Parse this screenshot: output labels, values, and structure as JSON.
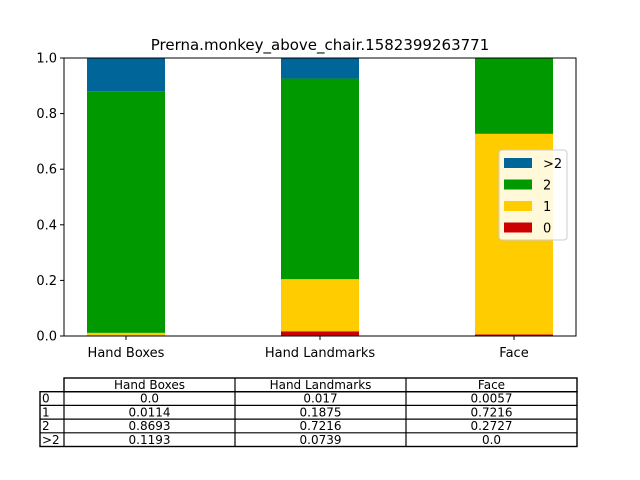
{
  "chart_data": {
    "type": "bar",
    "stacked": true,
    "title": "Prerna.monkey_above_chair.1582399263771",
    "xlabel": "",
    "ylabel": "",
    "categories": [
      "Hand Boxes",
      "Hand Landmarks",
      "Face"
    ],
    "ylim": [
      0,
      1.0
    ],
    "yticks": [
      "0.0",
      "0.2",
      "0.4",
      "0.6",
      "0.8",
      "1.0"
    ],
    "grid": false,
    "legend_position": "center-right",
    "series": [
      {
        "name": "0",
        "color": "#cc0000",
        "values": [
          0.0,
          0.017,
          0.0057
        ]
      },
      {
        "name": "1",
        "color": "#ffcc00",
        "values": [
          0.0114,
          0.1875,
          0.7216
        ]
      },
      {
        "name": "2",
        "color": "#009900",
        "values": [
          0.8693,
          0.7216,
          0.2727
        ]
      },
      {
        "name": ">2",
        "color": "#006699",
        "values": [
          0.1193,
          0.0739,
          0.0
        ]
      }
    ],
    "legend_order": [
      ">2",
      "2",
      "1",
      "0"
    ],
    "table": {
      "col_labels": [
        "Hand Boxes",
        "Hand Landmarks",
        "Face"
      ],
      "rows": [
        {
          "label": "0",
          "cells": [
            "0.0",
            "0.017",
            "0.0057"
          ]
        },
        {
          "label": "1",
          "cells": [
            "0.0114",
            "0.1875",
            "0.7216"
          ]
        },
        {
          "label": "2",
          "cells": [
            "0.8693",
            "0.7216",
            "0.2727"
          ]
        },
        {
          "label": ">2",
          "cells": [
            "0.1193",
            "0.0739",
            "0.0"
          ]
        }
      ]
    }
  }
}
